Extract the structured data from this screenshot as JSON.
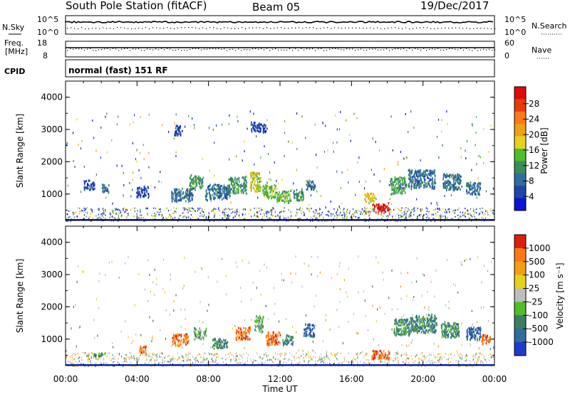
{
  "header": {
    "station": "South Pole Station (fitACF)",
    "beam": "Beam 05",
    "date": "19/Dec/2017"
  },
  "top_panels": {
    "nsky_label": "N.Sky",
    "nsky_ticks": [
      "10^5",
      "10^0"
    ],
    "nsearch_label": "N.Search",
    "nsearch_ticks": [
      "10^5",
      "10^0"
    ],
    "freq_label_1": "Freq.",
    "freq_label_2": "[MHz]",
    "freq_ticks": [
      "18",
      "8"
    ],
    "nave_label": "Nave",
    "nave_ticks": [
      "60",
      "0"
    ],
    "cpid_label": "CPID",
    "cpid_value": "normal (fast) 151 RF"
  },
  "x_axis": {
    "label": "Time UT",
    "ticks": [
      "00:00",
      "04:00",
      "08:00",
      "12:00",
      "16:00",
      "20:00",
      "00:00"
    ]
  },
  "power_panel": {
    "ylabel": "Slant Range [km]",
    "yticks": [
      "1000",
      "2000",
      "3000",
      "4000"
    ],
    "colorbar_label": "Power [dB]",
    "colorbar_ticks": [
      "4",
      "8",
      "12",
      "16",
      "20",
      "24",
      "28"
    ],
    "colors": [
      "#0a14d2",
      "#1e46aa",
      "#2d6e9b",
      "#3c8c5a",
      "#50be28",
      "#e6d21e",
      "#f0a014",
      "#ff7814",
      "#e63c0a",
      "#dc0a0a"
    ]
  },
  "velocity_panel": {
    "ylabel": "Slant Range [km]",
    "yticks": [
      "1000",
      "2000",
      "3000",
      "4000"
    ],
    "colorbar_label": "Velocity [m s⁻¹]",
    "colorbar_ticks": [
      "1000",
      "500",
      "100",
      "25",
      "-25",
      "-100",
      "-500",
      "-1000"
    ],
    "colors": [
      "#1e3cc8",
      "#2d6e9b",
      "#3c7d64",
      "#50be28",
      "#bebebe",
      "#e6d21e",
      "#f0a014",
      "#ff7814",
      "#dc1e0a"
    ]
  },
  "chart_data": {
    "type": "heatmap",
    "x_range_hours": [
      0,
      24
    ],
    "y_range_km": [
      180,
      4500
    ],
    "power_clusters": [
      {
        "t": 1.3,
        "r": 1300,
        "dt": 0.6,
        "dr": 300,
        "level": 1
      },
      {
        "t": 2.2,
        "r": 1200,
        "dt": 0.4,
        "dr": 250,
        "level": 2
      },
      {
        "t": 4.3,
        "r": 1100,
        "dt": 0.7,
        "dr": 350,
        "level": 1
      },
      {
        "t": 6.5,
        "r": 1000,
        "dt": 1.2,
        "dr": 400,
        "level": 2
      },
      {
        "t": 7.3,
        "r": 1400,
        "dt": 0.8,
        "dr": 400,
        "level": 3
      },
      {
        "t": 8.5,
        "r": 1100,
        "dt": 1.4,
        "dr": 450,
        "level": 2
      },
      {
        "t": 9.6,
        "r": 1300,
        "dt": 1.0,
        "dr": 500,
        "level": 3
      },
      {
        "t": 10.6,
        "r": 1400,
        "dt": 0.6,
        "dr": 600,
        "level": 5
      },
      {
        "t": 11.4,
        "r": 1100,
        "dt": 0.8,
        "dr": 400,
        "level": 4
      },
      {
        "t": 12.2,
        "r": 950,
        "dt": 0.8,
        "dr": 350,
        "level": 4
      },
      {
        "t": 13.0,
        "r": 1000,
        "dt": 0.6,
        "dr": 350,
        "level": 3
      },
      {
        "t": 13.7,
        "r": 1300,
        "dt": 0.5,
        "dr": 300,
        "level": 2
      },
      {
        "t": 17.6,
        "r": 600,
        "dt": 0.9,
        "dr": 250,
        "level": 9
      },
      {
        "t": 17.0,
        "r": 900,
        "dt": 0.6,
        "dr": 300,
        "level": 5
      },
      {
        "t": 18.6,
        "r": 1300,
        "dt": 0.9,
        "dr": 500,
        "level": 3
      },
      {
        "t": 19.9,
        "r": 1500,
        "dt": 1.5,
        "dr": 550,
        "level": 2
      },
      {
        "t": 21.6,
        "r": 1400,
        "dt": 1.0,
        "dr": 500,
        "level": 2
      },
      {
        "t": 22.8,
        "r": 1200,
        "dt": 0.8,
        "dr": 400,
        "level": 2
      },
      {
        "t": 10.8,
        "r": 3100,
        "dt": 0.9,
        "dr": 300,
        "level": 1
      },
      {
        "t": 6.3,
        "r": 3000,
        "dt": 0.5,
        "dr": 300,
        "level": 1
      }
    ],
    "velocity_clusters": [
      {
        "t": 1.9,
        "r": 560,
        "dt": 0.7,
        "dr": 120,
        "level": 2
      },
      {
        "t": 4.3,
        "r": 700,
        "dt": 0.4,
        "dr": 250,
        "level": 7
      },
      {
        "t": 6.4,
        "r": 1000,
        "dt": 0.9,
        "dr": 350,
        "level": 7
      },
      {
        "t": 7.5,
        "r": 1200,
        "dt": 0.7,
        "dr": 350,
        "level": 3
      },
      {
        "t": 8.6,
        "r": 900,
        "dt": 0.9,
        "dr": 300,
        "level": 2
      },
      {
        "t": 9.9,
        "r": 1200,
        "dt": 0.8,
        "dr": 400,
        "level": 7
      },
      {
        "t": 10.8,
        "r": 1500,
        "dt": 0.5,
        "dr": 500,
        "level": 3
      },
      {
        "t": 11.6,
        "r": 1050,
        "dt": 0.8,
        "dr": 400,
        "level": 7
      },
      {
        "t": 12.4,
        "r": 1000,
        "dt": 0.6,
        "dr": 300,
        "level": 2
      },
      {
        "t": 13.6,
        "r": 1300,
        "dt": 0.6,
        "dr": 400,
        "level": 1
      },
      {
        "t": 17.6,
        "r": 550,
        "dt": 1.0,
        "dr": 280,
        "level": 7
      },
      {
        "t": 18.8,
        "r": 1400,
        "dt": 0.9,
        "dr": 500,
        "level": 2
      },
      {
        "t": 20.0,
        "r": 1500,
        "dt": 1.5,
        "dr": 550,
        "level": 2
      },
      {
        "t": 21.5,
        "r": 1300,
        "dt": 1.0,
        "dr": 500,
        "level": 2
      },
      {
        "t": 22.8,
        "r": 1200,
        "dt": 0.8,
        "dr": 400,
        "level": 1
      },
      {
        "t": 23.5,
        "r": 1000,
        "dt": 0.5,
        "dr": 300,
        "level": 7
      }
    ]
  }
}
